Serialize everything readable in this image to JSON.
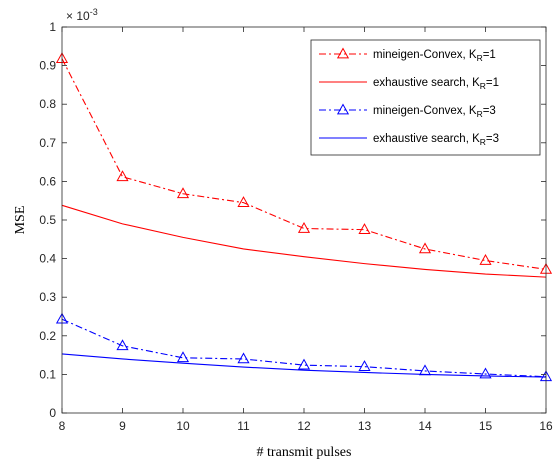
{
  "chart_data": {
    "type": "line",
    "xlabel": "# transmit pulses",
    "ylabel": "MSE",
    "y_multiplier": "× 10",
    "y_multiplier_exp": "-3",
    "x": [
      8,
      9,
      10,
      11,
      12,
      13,
      14,
      15,
      16
    ],
    "xlim": [
      8,
      16
    ],
    "ylim": [
      0,
      1
    ],
    "x_ticks": [
      "8",
      "9",
      "10",
      "11",
      "12",
      "13",
      "14",
      "15",
      "16"
    ],
    "y_ticks": [
      "0",
      "0.1",
      "0.2",
      "0.3",
      "0.4",
      "0.5",
      "0.6",
      "0.7",
      "0.8",
      "0.9",
      "1"
    ],
    "y_tick_values": [
      0,
      0.1,
      0.2,
      0.3,
      0.4,
      0.5,
      0.6,
      0.7,
      0.8,
      0.9,
      1
    ],
    "legend_position": "top-right",
    "grid": false,
    "series": [
      {
        "name_main": "mineigen-Convex, K",
        "name_sub": "R",
        "name_tail": "=1",
        "color": "#ff0000",
        "style": "dashdot",
        "marker": "triangle",
        "values": [
          0.918,
          0.612,
          0.568,
          0.545,
          0.478,
          0.475,
          0.425,
          0.395,
          0.372
        ]
      },
      {
        "name_main": "exhaustive search, K",
        "name_sub": "R",
        "name_tail": "=1",
        "color": "#ff0000",
        "style": "solid",
        "marker": "none",
        "values": [
          0.538,
          0.49,
          0.455,
          0.425,
          0.405,
          0.387,
          0.372,
          0.36,
          0.352
        ]
      },
      {
        "name_main": "mineigen-Convex, K",
        "name_sub": "R",
        "name_tail": "=3",
        "color": "#0000ff",
        "style": "dashdot",
        "marker": "triangle",
        "values": [
          0.243,
          0.174,
          0.143,
          0.14,
          0.124,
          0.12,
          0.109,
          0.101,
          0.094
        ]
      },
      {
        "name_main": "exhaustive search, K",
        "name_sub": "R",
        "name_tail": "=3",
        "color": "#0000ff",
        "style": "solid",
        "marker": "none",
        "values": [
          0.153,
          0.14,
          0.129,
          0.119,
          0.111,
          0.105,
          0.1,
          0.096,
          0.093
        ]
      }
    ]
  }
}
